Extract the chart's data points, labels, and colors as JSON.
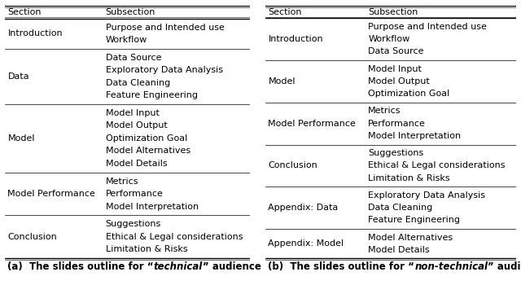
{
  "table_a": {
    "caption_prefix": "(a)  The slides outline for “",
    "caption_italic": "technical",
    "caption_suffix": "” audience",
    "rows": [
      {
        "section": "Introduction",
        "subsections": [
          "Purpose and Intended use",
          "Workflow"
        ]
      },
      {
        "section": "Data",
        "subsections": [
          "Data Source",
          "Exploratory Data Analysis",
          "Data Cleaning",
          "Feature Engineering"
        ]
      },
      {
        "section": "Model",
        "subsections": [
          "Model Input",
          "Model Output",
          "Optimization Goal",
          "Model Alternatives",
          "Model Details"
        ]
      },
      {
        "section": "Model Performance",
        "subsections": [
          "Metrics",
          "Performance",
          "Model Interpretation"
        ]
      },
      {
        "section": "Conclusion",
        "subsections": [
          "Suggestions",
          "Ethical & Legal considerations",
          "Limitation & Risks"
        ]
      }
    ]
  },
  "table_b": {
    "caption_prefix": "(b)  The slides outline for “",
    "caption_italic": "non-technical",
    "caption_suffix": "” audience",
    "rows": [
      {
        "section": "Introduction",
        "subsections": [
          "Purpose and Intended use",
          "Workflow",
          "Data Source"
        ]
      },
      {
        "section": "Model",
        "subsections": [
          "Model Input",
          "Model Output",
          "Optimization Goal"
        ]
      },
      {
        "section": "Model Performance",
        "subsections": [
          "Metrics",
          "Performance",
          "Model Interpretation"
        ]
      },
      {
        "section": "Conclusion",
        "subsections": [
          "Suggestions",
          "Ethical & Legal considerations",
          "Limitation & Risks"
        ]
      },
      {
        "section": "Appendix: Data",
        "subsections": [
          "Exploratory Data Analysis",
          "Data Cleaning",
          "Feature Engineering"
        ]
      },
      {
        "section": "Appendix: Model",
        "subsections": [
          "Model Alternatives",
          "Model Details"
        ]
      }
    ]
  },
  "header_section": "Section",
  "header_subsection": "Subsection",
  "bg_color": "#ffffff",
  "text_color": "#000000",
  "line_color": "#000000",
  "font_size": 8.0,
  "caption_font_size": 8.5
}
